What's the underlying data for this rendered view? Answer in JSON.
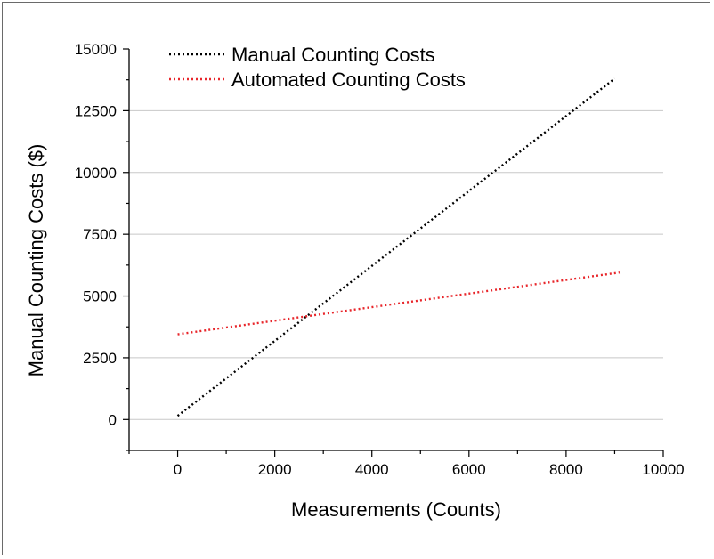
{
  "chart_data": {
    "type": "line",
    "xlabel": "Measurements (Counts)",
    "ylabel": "Manual Counting Costs ($)",
    "xlim": [
      -1000,
      10000
    ],
    "ylim": [
      -1250,
      15000
    ],
    "xticks": [
      0,
      2000,
      4000,
      6000,
      8000,
      10000
    ],
    "xtick_labels": [
      "0",
      "2000",
      "4000",
      "6000",
      "8000",
      "10000"
    ],
    "yticks": [
      0,
      2500,
      5000,
      7500,
      10000,
      12500,
      15000
    ],
    "ytick_labels": [
      "0",
      "2500",
      "5000",
      "7500",
      "10000",
      "12500",
      "15000"
    ],
    "grid": "horizontal",
    "legend": "top-left",
    "series": [
      {
        "name": "Manual Counting Costs",
        "color": "#000000",
        "style": "dotted",
        "x": [
          0,
          9000
        ],
        "y": [
          150,
          13800
        ]
      },
      {
        "name": "Automated Counting Costs",
        "color": "#e8262b",
        "style": "dotted",
        "x": [
          0,
          9100
        ],
        "y": [
          3450,
          5950
        ]
      }
    ]
  }
}
